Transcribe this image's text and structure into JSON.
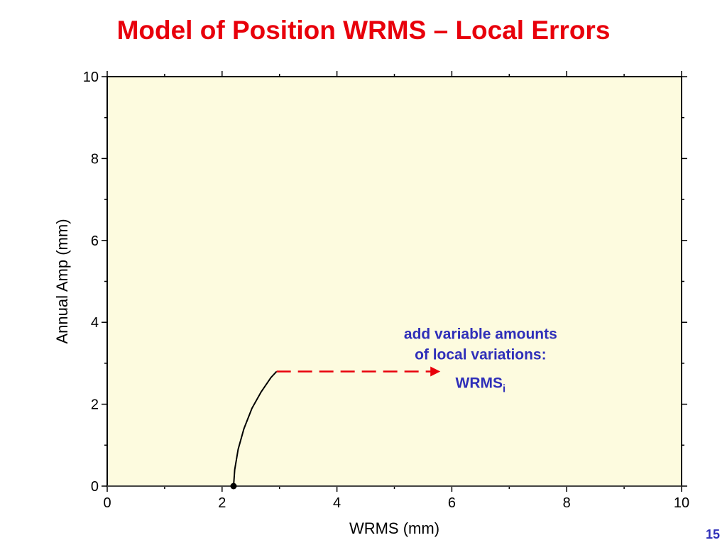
{
  "slide": {
    "title": "Model of Position WRMS – Local Errors",
    "page_number": "15"
  },
  "colors": {
    "title": "#e8000b",
    "annotation_text": "#2f2fb9",
    "plot_background": "#fdfbdf",
    "curve": "#000000",
    "arrow": "#e8000b"
  },
  "chart_data": {
    "type": "line",
    "title": "",
    "xlabel": "WRMS (mm)",
    "ylabel": "Annual Amp (mm)",
    "xlim": [
      0,
      10
    ],
    "ylim": [
      0,
      10
    ],
    "x_ticks": [
      0,
      2,
      4,
      6,
      8,
      10
    ],
    "y_ticks": [
      0,
      2,
      4,
      6,
      8,
      10
    ],
    "x_tick_labels": [
      "0",
      "2",
      "4",
      "6",
      "8",
      "10"
    ],
    "y_tick_labels": [
      "0",
      "2",
      "4",
      "6",
      "8",
      "10"
    ],
    "grid": false,
    "series": [
      {
        "x": [
          2.2,
          2.22,
          2.28,
          2.38,
          2.52,
          2.68,
          2.85,
          2.95
        ],
        "y": [
          0,
          0.4,
          0.9,
          1.4,
          1.9,
          2.3,
          2.65,
          2.8
        ]
      }
    ],
    "start_point": {
      "x": 2.2,
      "y": 0
    },
    "zero_line_y": 0,
    "annotation": {
      "line1": "add variable amounts",
      "line2": "of local variations:",
      "label_main": "WRMS",
      "label_sub": "i",
      "anchor": {
        "x": 6.5,
        "y": 3.6
      },
      "label_anchor": {
        "x": 6.5,
        "y": 2.4
      },
      "arrow_from": {
        "x": 2.95,
        "y": 2.8
      },
      "arrow_to": {
        "x": 5.8,
        "y": 2.8
      }
    }
  }
}
